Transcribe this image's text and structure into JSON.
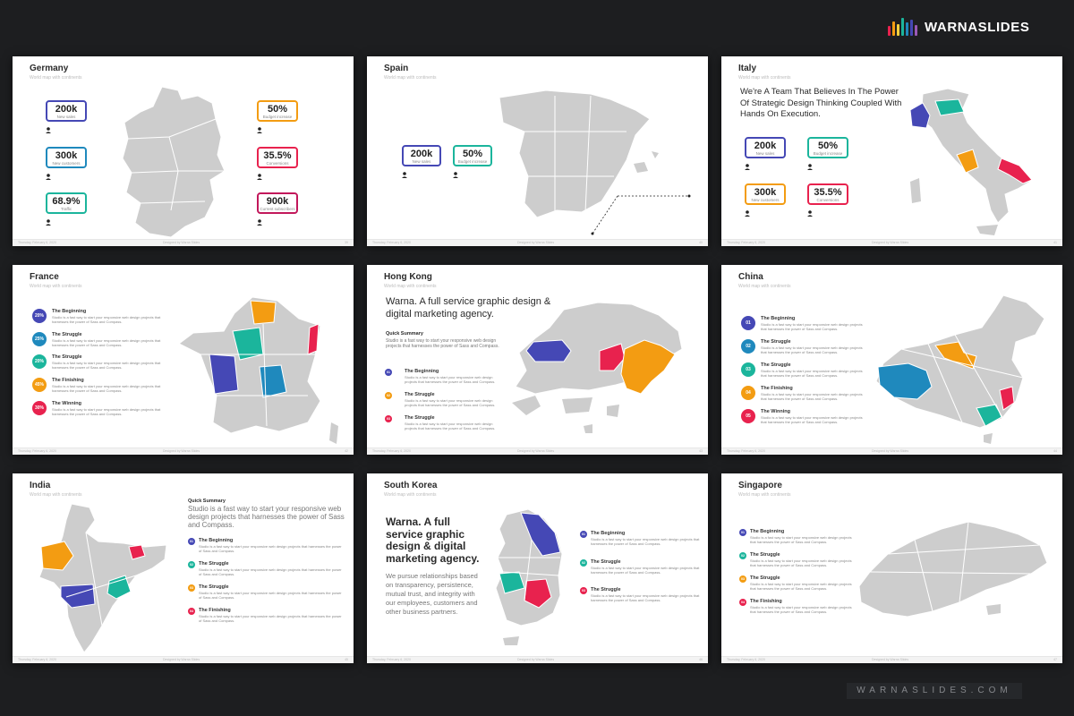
{
  "brand": {
    "name": "WARNASLIDES",
    "footer": "WARNASLIDES.COM"
  },
  "colors": {
    "blue": "#4548b5",
    "teal": "#1bb59c",
    "orange": "#f39c12",
    "red": "#e8224e",
    "cyan": "#1f89bd",
    "map": "#cdcdcd"
  },
  "common": {
    "subtitle": "World map with continents",
    "footer_left": "Thursday, February 6, 2020",
    "footer_center": "Designed by Warna Slides"
  },
  "germany": {
    "title": "Germany",
    "stats": [
      {
        "value": "200k",
        "label": "New sales"
      },
      {
        "value": "300k",
        "label": "New customers"
      },
      {
        "value": "68.9%",
        "label": "Traffic"
      },
      {
        "value": "50%",
        "label": "Budget increase"
      },
      {
        "value": "35.5%",
        "label": "Conversions"
      },
      {
        "value": "900k",
        "label": "Current subscribers"
      }
    ],
    "page": "39"
  },
  "spain": {
    "title": "Spain",
    "stats": [
      {
        "value": "200k",
        "label": "New sales"
      },
      {
        "value": "50%",
        "label": "Budget increase"
      }
    ],
    "page": "40"
  },
  "italy": {
    "title": "Italy",
    "heading": "We're A Team That Believes In The Power Of Strategic Design Thinking Coupled With Hands On Execution.",
    "stats": [
      {
        "value": "200k",
        "label": "New sales"
      },
      {
        "value": "50%",
        "label": "Budget increase"
      },
      {
        "value": "300k",
        "label": "New customers"
      },
      {
        "value": "35.5%",
        "label": "Conversions"
      }
    ],
    "page": "41"
  },
  "france": {
    "title": "France",
    "desc": "Studio is a fast way to start your responsive web design projects that harnesses the power of Sass and Compass.",
    "items": [
      {
        "badge": "20%",
        "title": "The Beginning"
      },
      {
        "badge": "25%",
        "title": "The Struggle"
      },
      {
        "badge": "20%",
        "title": "The Struggle"
      },
      {
        "badge": "45%",
        "title": "The Finishing"
      },
      {
        "badge": "30%",
        "title": "The Winning"
      }
    ],
    "page": "42"
  },
  "hongkong": {
    "title": "Hong Kong",
    "heading": "Warna. A full service graphic design & digital marketing agency.",
    "summary_title": "Quick Summary",
    "summary": "Studio is a fast way to start your responsive web design projects that harnesses the power of Sass and Compass.",
    "desc": "Studio is a fast way to start your responsive web design projects that harnesses the power of Sass and Compass.",
    "items": [
      {
        "badge": "01",
        "title": "The Beginning"
      },
      {
        "badge": "02",
        "title": "The Struggle"
      },
      {
        "badge": "03",
        "title": "The Struggle"
      }
    ],
    "page": "43"
  },
  "china": {
    "title": "China",
    "desc": "Studio is a fast way to start your responsive web design projects that harnesses the power of Sass and Compass.",
    "items": [
      {
        "badge": "01",
        "title": "The Beginning"
      },
      {
        "badge": "02",
        "title": "The Struggle"
      },
      {
        "badge": "03",
        "title": "The Struggle"
      },
      {
        "badge": "04",
        "title": "The Finishing"
      },
      {
        "badge": "05",
        "title": "The Winning"
      }
    ],
    "page": "44"
  },
  "india": {
    "title": "India",
    "summary_title": "Quick Summary",
    "summary": "Studio is a fast way to start your responsive web design projects that harnesses the power of Sass and Compass.",
    "desc": "Studio is a fast way to start your responsive web design projects that harnesses the power of Sass and Compass.",
    "items": [
      {
        "badge": "01",
        "title": "The Beginning"
      },
      {
        "badge": "02",
        "title": "The Struggle"
      },
      {
        "badge": "03",
        "title": "The Struggle"
      },
      {
        "badge": "04",
        "title": "The Finishing"
      }
    ],
    "page": "45"
  },
  "southkorea": {
    "title": "South Korea",
    "heading": "Warna. A full service graphic design & digital marketing agency.",
    "body": "We pursue relationships based on transparency, persistence, mutual trust, and integrity with our employees, customers and other business partners.",
    "desc": "Studio is a fast way to start your responsive web design projects that harnesses the power of Sass and Compass.",
    "items": [
      {
        "badge": "01",
        "title": "The Beginning"
      },
      {
        "badge": "02",
        "title": "The Struggle"
      },
      {
        "badge": "03",
        "title": "The Struggle"
      }
    ],
    "page": "46"
  },
  "singapore": {
    "title": "Singapore",
    "desc": "Studio is a fast way to start your responsive web design projects that harnesses the power of Sass and Compass.",
    "items": [
      {
        "badge": "01",
        "title": "The Beginning"
      },
      {
        "badge": "02",
        "title": "The Struggle"
      },
      {
        "badge": "03",
        "title": "The Struggle"
      },
      {
        "badge": "04",
        "title": "The Finishing"
      }
    ],
    "page": "47"
  }
}
